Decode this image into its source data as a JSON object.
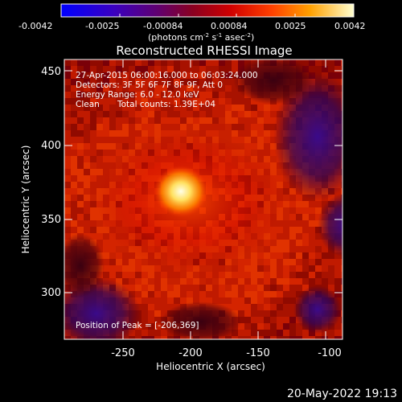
{
  "colorbar": {
    "ticks": [
      "-0.0042",
      "-0.0025",
      "-0.00084",
      "0.00084",
      "0.0025",
      "0.0042"
    ],
    "units_main": "(photons cm",
    "units_sup1": "-2",
    "units_mid1": " s",
    "units_sup2": "-1",
    "units_mid2": " asec",
    "units_sup3": "-2",
    "units_end": ")"
  },
  "title": "Reconstructed RHESSI Image",
  "info": {
    "line1": "27-Apr-2015 06:00:16.000 to 06:03:24.000",
    "line2": "Detectors: 3F 5F 6F 7F 8F 9F, Att 0",
    "line3": "Energy Range: 6.0 - 12.0 keV",
    "line4_a": "Clean",
    "line4_b": "Total counts: 1.39E+04",
    "peak": "Position of Peak = [-206,369]"
  },
  "axes": {
    "xlabel": "Heliocentric X (arcsec)",
    "ylabel": "Heliocentric Y (arcsec)",
    "xticks": [
      "-250",
      "-200",
      "-150",
      "-100"
    ],
    "yticks": [
      "300",
      "350",
      "400",
      "450"
    ]
  },
  "footer": {
    "timestamp": "20-May-2022 19:13"
  },
  "colors": {
    "background": "#000000",
    "text": "#ffffff"
  }
}
